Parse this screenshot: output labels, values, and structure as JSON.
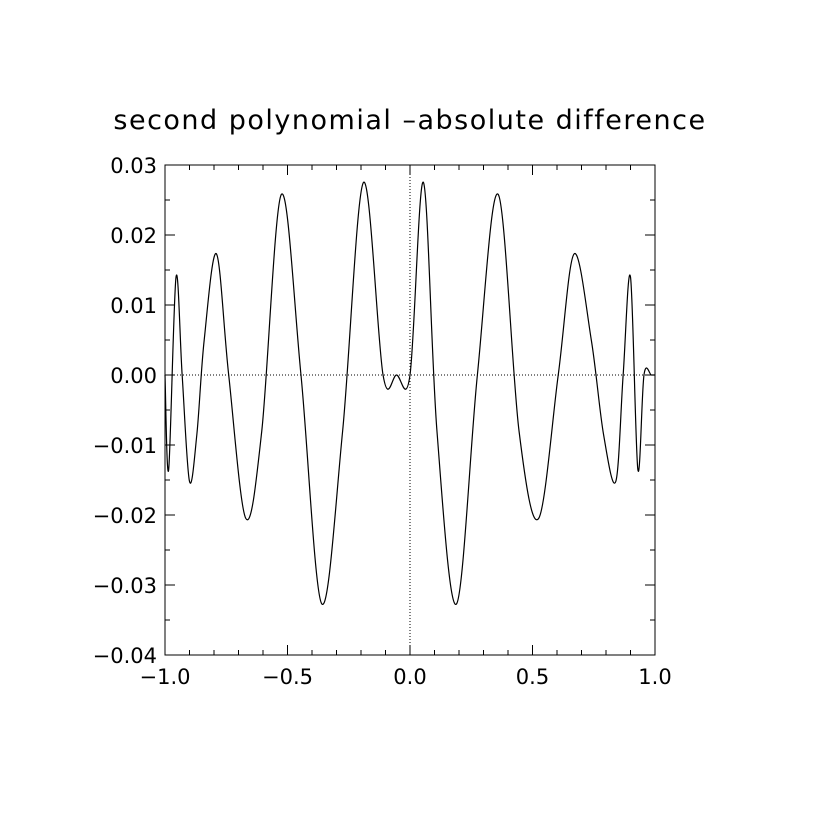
{
  "chart_data": {
    "type": "line",
    "title": "second polynomial –absolute difference",
    "xlabel": "",
    "ylabel": "",
    "xlim": [
      -1.0,
      1.0
    ],
    "ylim": [
      -0.04,
      0.03
    ],
    "x_ticks": [
      -1.0,
      -0.5,
      0.0,
      0.5,
      1.0
    ],
    "x_tick_labels": [
      "−1.0",
      "−0.5",
      "0.0",
      "0.5",
      "1.0"
    ],
    "y_ticks": [
      -0.04,
      -0.03,
      -0.02,
      -0.01,
      0.0,
      0.01,
      0.02,
      0.03
    ],
    "y_tick_labels": [
      "−0.04",
      "−0.03",
      "−0.02",
      "−0.01",
      "0.00",
      "0.01",
      "0.02",
      "0.03"
    ],
    "grid": false,
    "reference_lines": {
      "x": 0.0,
      "y": 0.0,
      "style": "dotted"
    },
    "line_color": "#000000",
    "series": [
      {
        "x": [
          -1.0,
          -0.985,
          -0.955,
          -0.93,
          -0.9,
          -0.87,
          -0.84,
          -0.79,
          -0.74,
          -0.67,
          -0.605,
          -0.525,
          -0.445,
          -0.36,
          -0.275,
          -0.19,
          -0.11,
          -0.055,
          0.0,
          0.055,
          0.11,
          0.19,
          0.275,
          0.36,
          0.445,
          0.525,
          0.605,
          0.67,
          0.74,
          0.79,
          0.84,
          0.87,
          0.9,
          0.93,
          0.955,
          0.985,
          1.0
        ],
        "y": [
          0.0,
          -0.0135,
          0.014,
          0.0,
          -0.0152,
          -0.0085,
          0.005,
          0.0173,
          0.0,
          -0.0205,
          -0.008,
          0.0258,
          0.0,
          -0.0327,
          -0.008,
          0.0275,
          0.0,
          0.0,
          0.0,
          0.0275,
          -0.008,
          -0.0327,
          0.0,
          0.0258,
          -0.008,
          -0.0205,
          0.0,
          0.0173,
          0.005,
          -0.0085,
          -0.0152,
          0.0,
          0.014,
          -0.0135,
          0.0,
          0.0,
          0.0
        ]
      }
    ]
  }
}
